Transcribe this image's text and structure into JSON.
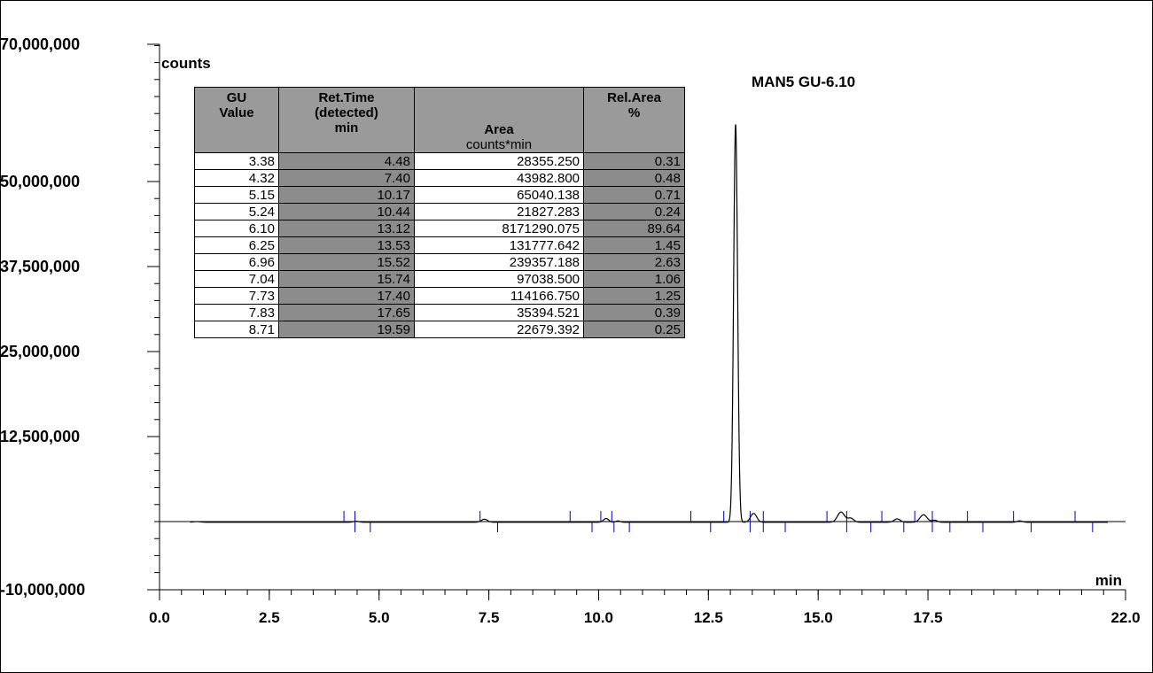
{
  "chart_data": {
    "type": "line",
    "xlabel": "min",
    "ylabel": "counts",
    "xlim": [
      0.0,
      22.0
    ],
    "ylim": [
      -10000000,
      70000000
    ],
    "x_ticks": [
      "0.0",
      "2.5",
      "5.0",
      "7.5",
      "10.0",
      "12.5",
      "15.0",
      "17.5",
      "22.0"
    ],
    "x_tick_values": [
      0.0,
      2.5,
      5.0,
      7.5,
      10.0,
      12.5,
      15.0,
      17.5,
      22.0
    ],
    "y_ticks": [
      "70,000,000",
      "50,000,000",
      "37,500,000",
      "25,000,000",
      "12,500,000",
      "-10,000,000"
    ],
    "y_tick_values": [
      70000000,
      50000000,
      37500000,
      25000000,
      12500000,
      -10000000
    ],
    "annotation": "MAN5 GU-6.10",
    "annotation_x": 13.12,
    "series": [
      {
        "peaks": [
          {
            "rt": 0.85,
            "height": 100000,
            "width": 0.08
          },
          {
            "rt": 4.48,
            "height": 150000,
            "width": 0.06
          },
          {
            "rt": 7.4,
            "height": 450000,
            "width": 0.07
          },
          {
            "rt": 10.17,
            "height": 550000,
            "width": 0.06
          },
          {
            "rt": 10.44,
            "height": 200000,
            "width": 0.05
          },
          {
            "rt": 13.12,
            "height": 58500000,
            "width": 0.045
          },
          {
            "rt": 13.53,
            "height": 1300000,
            "width": 0.07
          },
          {
            "rt": 15.52,
            "height": 1500000,
            "width": 0.08
          },
          {
            "rt": 15.74,
            "height": 600000,
            "width": 0.07
          },
          {
            "rt": 16.8,
            "height": 500000,
            "width": 0.07
          },
          {
            "rt": 17.4,
            "height": 1100000,
            "width": 0.08
          },
          {
            "rt": 17.65,
            "height": 300000,
            "width": 0.06
          },
          {
            "rt": 19.59,
            "height": 200000,
            "width": 0.06
          }
        ],
        "baseline": -100000
      }
    ],
    "integration_marks": [
      {
        "x": 4.2,
        "dir": "up"
      },
      {
        "x": 4.45,
        "dir": "up"
      },
      {
        "x": 4.45,
        "dir": "down"
      },
      {
        "x": 4.8,
        "dir": "down"
      },
      {
        "x": 7.3,
        "dir": "up"
      },
      {
        "x": 7.7,
        "dir": "down"
      },
      {
        "x": 9.35,
        "dir": "up"
      },
      {
        "x": 9.85,
        "dir": "down"
      },
      {
        "x": 10.05,
        "dir": "up"
      },
      {
        "x": 10.3,
        "dir": "up"
      },
      {
        "x": 10.35,
        "dir": "down"
      },
      {
        "x": 10.7,
        "dir": "down"
      },
      {
        "x": 12.1,
        "dir": "up"
      },
      {
        "x": 12.55,
        "dir": "down"
      },
      {
        "x": 12.85,
        "dir": "up"
      },
      {
        "x": 13.45,
        "dir": "up"
      },
      {
        "x": 13.45,
        "dir": "down"
      },
      {
        "x": 13.75,
        "dir": "up"
      },
      {
        "x": 13.75,
        "dir": "down"
      },
      {
        "x": 14.25,
        "dir": "down"
      },
      {
        "x": 15.2,
        "dir": "up"
      },
      {
        "x": 15.65,
        "dir": "up"
      },
      {
        "x": 15.65,
        "dir": "down"
      },
      {
        "x": 16.2,
        "dir": "down"
      },
      {
        "x": 16.45,
        "dir": "up"
      },
      {
        "x": 16.95,
        "dir": "down"
      },
      {
        "x": 17.2,
        "dir": "up"
      },
      {
        "x": 17.6,
        "dir": "up"
      },
      {
        "x": 17.6,
        "dir": "down"
      },
      {
        "x": 18.0,
        "dir": "down"
      },
      {
        "x": 18.4,
        "dir": "up"
      },
      {
        "x": 18.75,
        "dir": "down"
      },
      {
        "x": 19.45,
        "dir": "up"
      },
      {
        "x": 19.85,
        "dir": "down"
      },
      {
        "x": 20.85,
        "dir": "up"
      },
      {
        "x": 21.25,
        "dir": "down"
      }
    ]
  },
  "peak_table": {
    "headers": [
      {
        "title": "GU\nValue",
        "unit": ""
      },
      {
        "title": "Ret.Time\n(detected)\nmin",
        "unit": ""
      },
      {
        "title": "Area",
        "unit": "counts*min"
      },
      {
        "title": "Rel.Area\n%",
        "unit": ""
      }
    ],
    "rows": [
      [
        "3.38",
        "4.48",
        "28355.250",
        "0.31"
      ],
      [
        "4.32",
        "7.40",
        "43982.800",
        "0.48"
      ],
      [
        "5.15",
        "10.17",
        "65040.138",
        "0.71"
      ],
      [
        "5.24",
        "10.44",
        "21827.283",
        "0.24"
      ],
      [
        "6.10",
        "13.12",
        "8171290.075",
        "89.64"
      ],
      [
        "6.25",
        "13.53",
        "131777.642",
        "1.45"
      ],
      [
        "6.96",
        "15.52",
        "239357.188",
        "2.63"
      ],
      [
        "7.04",
        "15.74",
        "97038.500",
        "1.06"
      ],
      [
        "7.73",
        "17.40",
        "114166.750",
        "1.25"
      ],
      [
        "7.83",
        "17.65",
        "35394.521",
        "0.39"
      ],
      [
        "8.71",
        "19.59",
        "22679.392",
        "0.25"
      ]
    ]
  },
  "colors": {
    "trace": "#000000",
    "integration_marks": "#0000cc",
    "table_dark": "#8c8c8c",
    "table_header": "#9a9a9a"
  }
}
